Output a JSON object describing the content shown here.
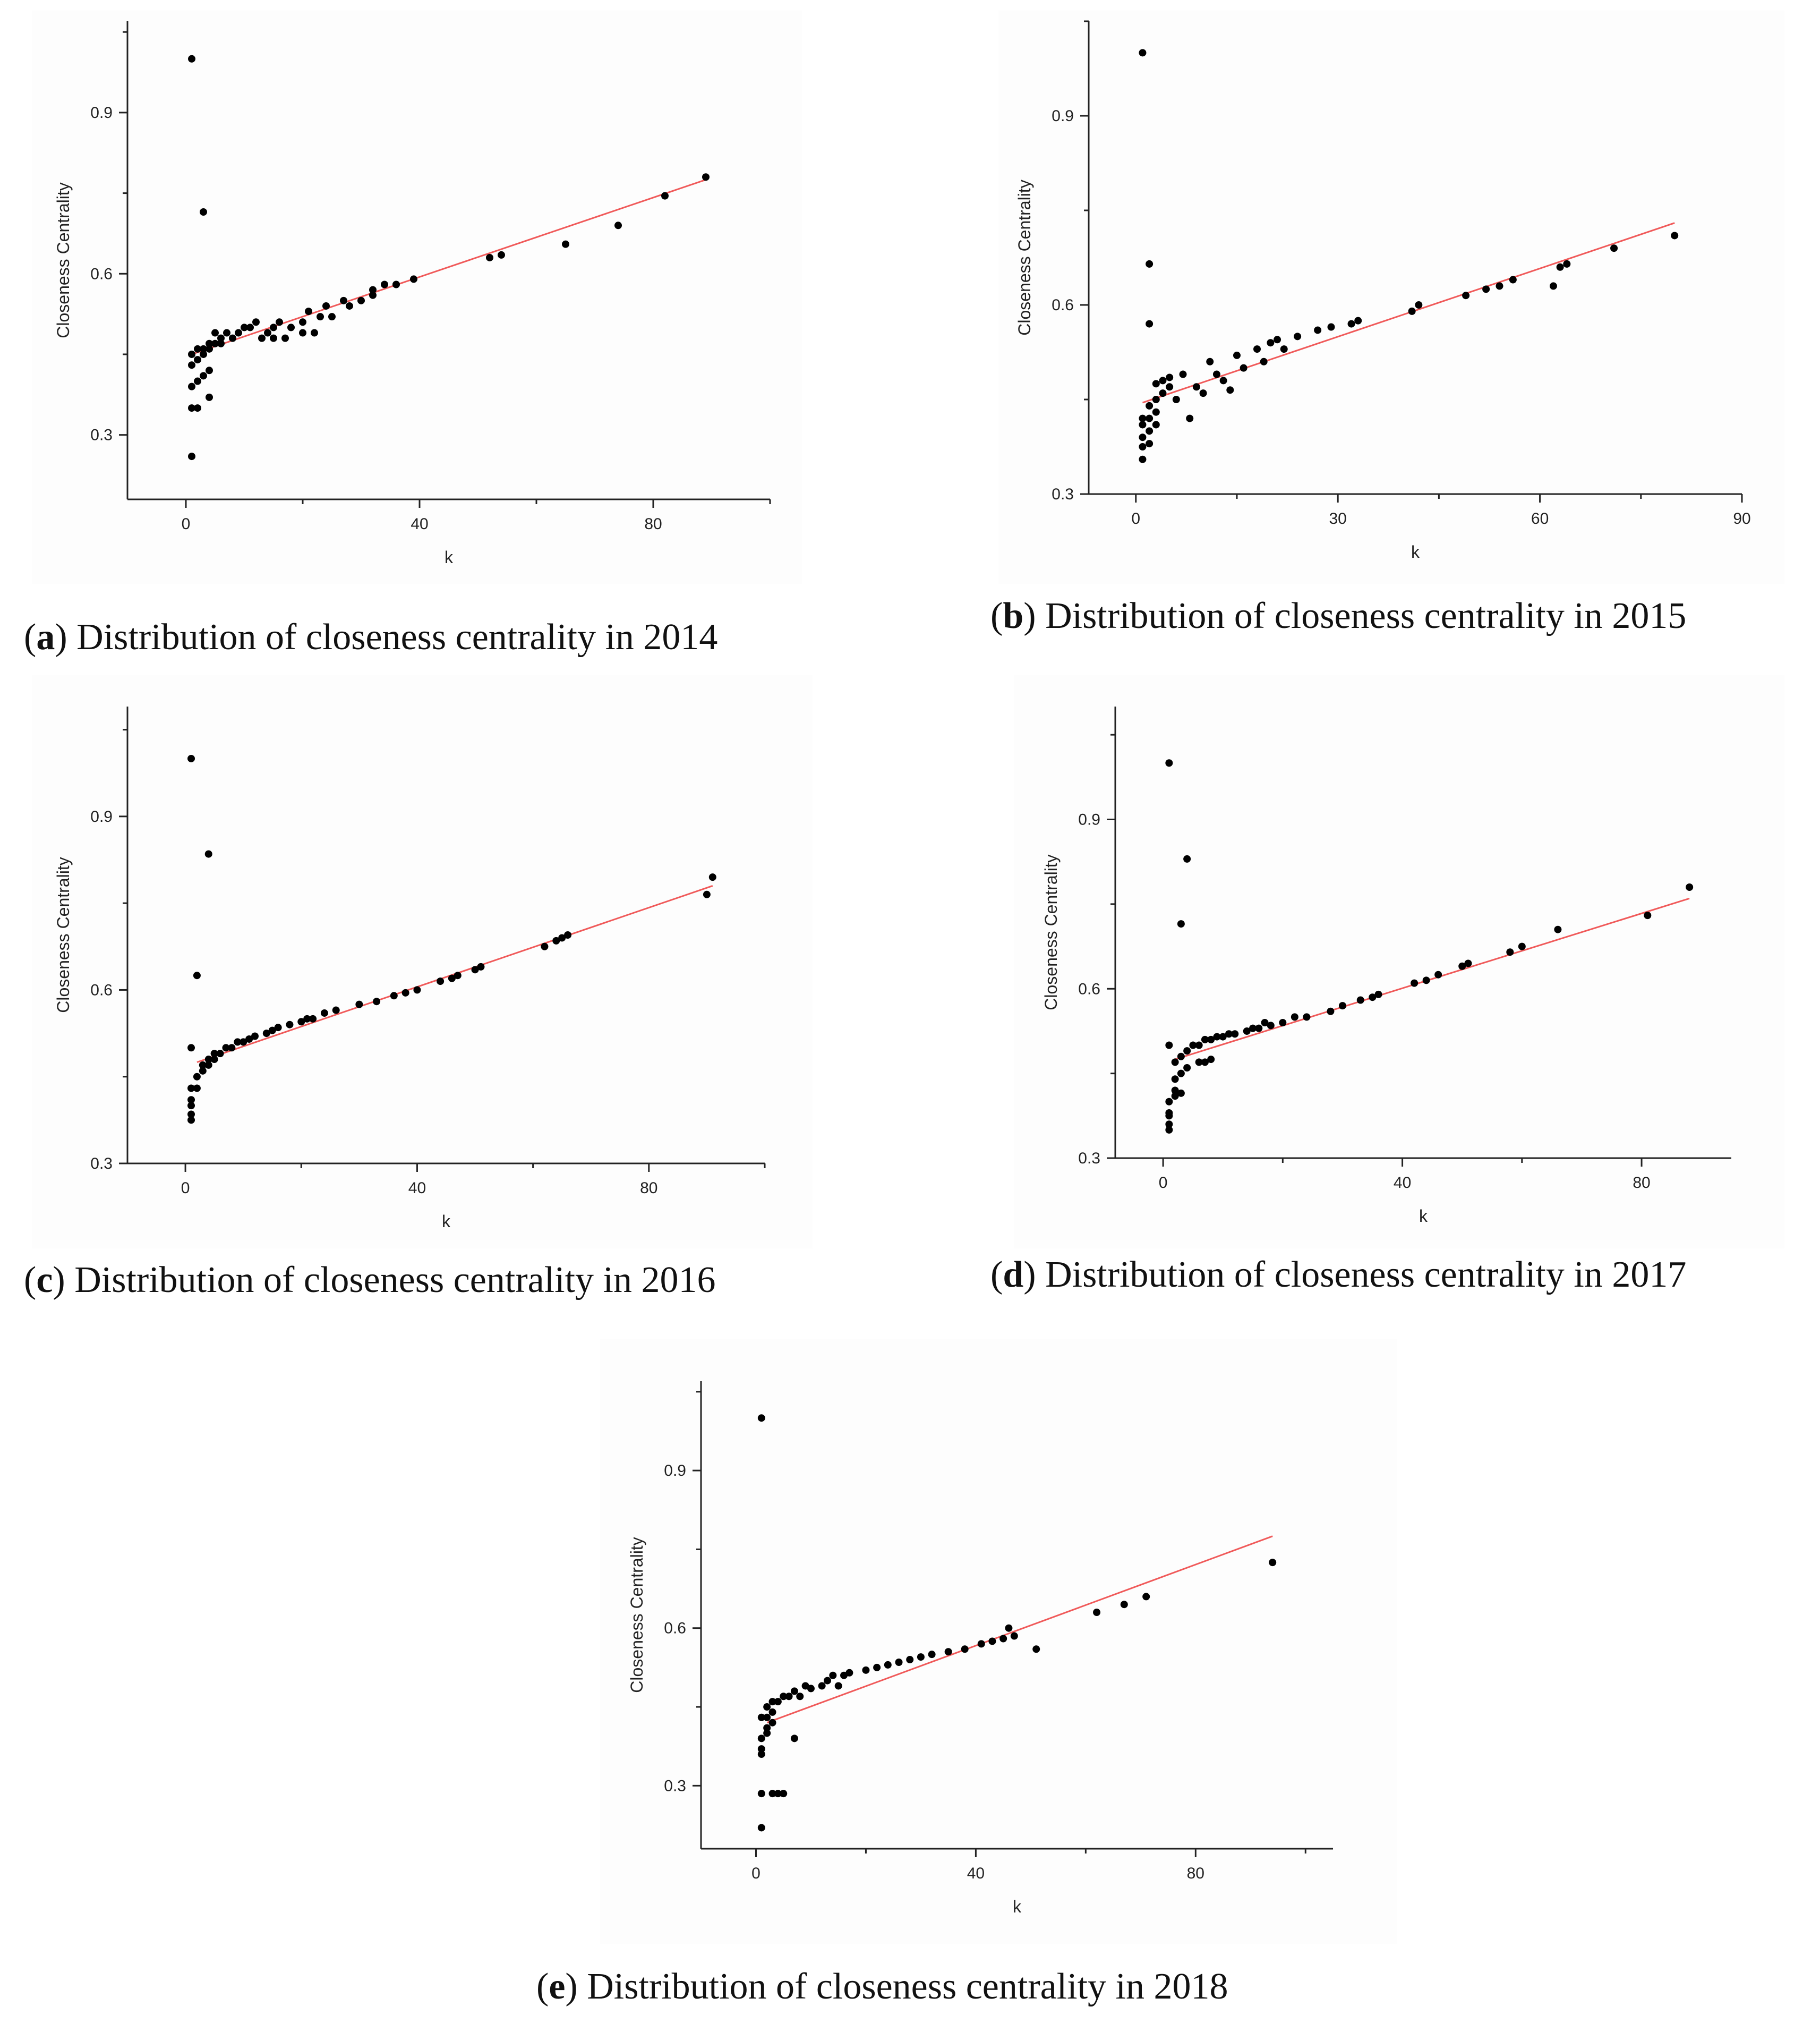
{
  "figure": {
    "panels": [
      {
        "letter": "a",
        "caption_text": " Distribution of closeness centrality in 2014"
      },
      {
        "letter": "b",
        "caption_text": " Distribution of closeness centrality in 2015"
      },
      {
        "letter": "c",
        "caption_text": " Distribution of closeness centrality in 2016"
      },
      {
        "letter": "d",
        "caption_text": " Distribution of closeness centrality in 2017"
      },
      {
        "letter": "e",
        "caption_text": " Distribution of closeness centrality in 2018"
      }
    ]
  },
  "colors": {
    "points": "#000000",
    "fit_line": "#f05a5a",
    "axes": "#222222"
  },
  "chart_data": [
    {
      "type": "scatter",
      "title": "Distribution of closeness centrality in 2014",
      "xlabel": "k",
      "ylabel": "Closeness Centrality",
      "xlim": [
        -10,
        100
      ],
      "ylim": [
        0.18,
        1.07
      ],
      "xticks": [
        0,
        40,
        80
      ],
      "yticks": [
        0.3,
        0.6,
        0.9
      ],
      "xtick_labels": [
        "0",
        "40",
        "80"
      ],
      "ytick_labels": [
        "0.3",
        "0.6",
        "0.9"
      ],
      "fit": {
        "x": [
          1,
          89
        ],
        "y": [
          0.45,
          0.775
        ]
      },
      "points": [
        [
          1,
          1.0
        ],
        [
          3,
          0.715
        ],
        [
          1,
          0.26
        ],
        [
          1,
          0.35
        ],
        [
          2,
          0.35
        ],
        [
          4,
          0.37
        ],
        [
          1,
          0.39
        ],
        [
          2,
          0.4
        ],
        [
          3,
          0.41
        ],
        [
          4,
          0.42
        ],
        [
          1,
          0.43
        ],
        [
          2,
          0.44
        ],
        [
          3,
          0.45
        ],
        [
          1,
          0.45
        ],
        [
          2,
          0.46
        ],
        [
          3,
          0.46
        ],
        [
          4,
          0.47
        ],
        [
          5,
          0.47
        ],
        [
          6,
          0.48
        ],
        [
          4,
          0.46
        ],
        [
          5,
          0.49
        ],
        [
          6,
          0.47
        ],
        [
          7,
          0.49
        ],
        [
          8,
          0.48
        ],
        [
          9,
          0.49
        ],
        [
          10,
          0.5
        ],
        [
          11,
          0.5
        ],
        [
          12,
          0.51
        ],
        [
          13,
          0.48
        ],
        [
          14,
          0.49
        ],
        [
          15,
          0.5
        ],
        [
          15,
          0.48
        ],
        [
          16,
          0.51
        ],
        [
          17,
          0.48
        ],
        [
          18,
          0.5
        ],
        [
          20,
          0.51
        ],
        [
          20,
          0.49
        ],
        [
          21,
          0.53
        ],
        [
          22,
          0.49
        ],
        [
          23,
          0.52
        ],
        [
          24,
          0.54
        ],
        [
          25,
          0.52
        ],
        [
          27,
          0.55
        ],
        [
          28,
          0.54
        ],
        [
          30,
          0.55
        ],
        [
          32,
          0.57
        ],
        [
          32,
          0.56
        ],
        [
          34,
          0.58
        ],
        [
          36,
          0.58
        ],
        [
          39,
          0.59
        ],
        [
          52,
          0.63
        ],
        [
          54,
          0.635
        ],
        [
          65,
          0.655
        ],
        [
          74,
          0.69
        ],
        [
          82,
          0.745
        ],
        [
          89,
          0.78
        ]
      ]
    },
    {
      "type": "scatter",
      "title": "Distribution of closeness centrality in 2015",
      "xlabel": "k",
      "ylabel": "Closeness Centrality",
      "xlim": [
        -7,
        90
      ],
      "ylim": [
        0.3,
        1.05
      ],
      "xticks": [
        0,
        30,
        60,
        90
      ],
      "yticks": [
        0.3,
        0.6,
        0.9
      ],
      "xtick_labels": [
        "0",
        "30",
        "60",
        "90"
      ],
      "ytick_labels": [
        "0.3",
        "0.6",
        "0.9"
      ],
      "fit": {
        "x": [
          1,
          80
        ],
        "y": [
          0.445,
          0.73
        ]
      },
      "points": [
        [
          1,
          1.0
        ],
        [
          2,
          0.665
        ],
        [
          2,
          0.57
        ],
        [
          1,
          0.355
        ],
        [
          1,
          0.375
        ],
        [
          2,
          0.38
        ],
        [
          1,
          0.39
        ],
        [
          2,
          0.4
        ],
        [
          3,
          0.41
        ],
        [
          1,
          0.41
        ],
        [
          2,
          0.42
        ],
        [
          3,
          0.43
        ],
        [
          1,
          0.42
        ],
        [
          2,
          0.44
        ],
        [
          3,
          0.45
        ],
        [
          4,
          0.46
        ],
        [
          5,
          0.47
        ],
        [
          3,
          0.475
        ],
        [
          4,
          0.48
        ],
        [
          5,
          0.485
        ],
        [
          6,
          0.45
        ],
        [
          7,
          0.49
        ],
        [
          8,
          0.42
        ],
        [
          9,
          0.47
        ],
        [
          10,
          0.46
        ],
        [
          11,
          0.51
        ],
        [
          12,
          0.49
        ],
        [
          13,
          0.48
        ],
        [
          14,
          0.465
        ],
        [
          15,
          0.52
        ],
        [
          16,
          0.5
        ],
        [
          18,
          0.53
        ],
        [
          19,
          0.51
        ],
        [
          20,
          0.54
        ],
        [
          21,
          0.545
        ],
        [
          22,
          0.53
        ],
        [
          24,
          0.55
        ],
        [
          27,
          0.56
        ],
        [
          29,
          0.565
        ],
        [
          32,
          0.57
        ],
        [
          33,
          0.575
        ],
        [
          41,
          0.59
        ],
        [
          42,
          0.6
        ],
        [
          49,
          0.615
        ],
        [
          52,
          0.625
        ],
        [
          54,
          0.63
        ],
        [
          56,
          0.64
        ],
        [
          62,
          0.63
        ],
        [
          63,
          0.66
        ],
        [
          64,
          0.665
        ],
        [
          71,
          0.69
        ],
        [
          80,
          0.71
        ]
      ]
    },
    {
      "type": "scatter",
      "title": "Distribution of closeness centrality in 2016",
      "xlabel": "k",
      "ylabel": "Closeness Centrality",
      "xlim": [
        -10,
        100
      ],
      "ylim": [
        0.3,
        1.09
      ],
      "xticks": [
        0,
        40,
        80
      ],
      "yticks": [
        0.3,
        0.6,
        0.9
      ],
      "xtick_labels": [
        "0",
        "40",
        "80"
      ],
      "ytick_labels": [
        "0.3",
        "0.6",
        "0.9"
      ],
      "fit": {
        "x": [
          2,
          91
        ],
        "y": [
          0.475,
          0.78
        ]
      },
      "points": [
        [
          1,
          1.0
        ],
        [
          4,
          0.835
        ],
        [
          2,
          0.625
        ],
        [
          1,
          0.5
        ],
        [
          1,
          0.375
        ],
        [
          1,
          0.385
        ],
        [
          1,
          0.4
        ],
        [
          1,
          0.41
        ],
        [
          1,
          0.43
        ],
        [
          2,
          0.43
        ],
        [
          2,
          0.45
        ],
        [
          3,
          0.46
        ],
        [
          3,
          0.47
        ],
        [
          4,
          0.47
        ],
        [
          4,
          0.48
        ],
        [
          5,
          0.48
        ],
        [
          5,
          0.49
        ],
        [
          6,
          0.49
        ],
        [
          7,
          0.5
        ],
        [
          8,
          0.5
        ],
        [
          9,
          0.51
        ],
        [
          10,
          0.51
        ],
        [
          11,
          0.515
        ],
        [
          12,
          0.52
        ],
        [
          14,
          0.525
        ],
        [
          15,
          0.53
        ],
        [
          16,
          0.535
        ],
        [
          18,
          0.54
        ],
        [
          20,
          0.545
        ],
        [
          21,
          0.55
        ],
        [
          22,
          0.55
        ],
        [
          24,
          0.56
        ],
        [
          26,
          0.565
        ],
        [
          30,
          0.575
        ],
        [
          33,
          0.58
        ],
        [
          36,
          0.59
        ],
        [
          38,
          0.595
        ],
        [
          40,
          0.6
        ],
        [
          44,
          0.615
        ],
        [
          46,
          0.62
        ],
        [
          47,
          0.625
        ],
        [
          50,
          0.635
        ],
        [
          51,
          0.64
        ],
        [
          62,
          0.675
        ],
        [
          64,
          0.685
        ],
        [
          65,
          0.69
        ],
        [
          66,
          0.695
        ],
        [
          90,
          0.765
        ],
        [
          91,
          0.795
        ]
      ]
    },
    {
      "type": "scatter",
      "title": "Distribution of closeness centrality in 2017",
      "xlabel": "k",
      "ylabel": "Closeness Centrality",
      "xlim": [
        -8,
        95
      ],
      "ylim": [
        0.3,
        1.1
      ],
      "xticks": [
        0,
        40,
        80
      ],
      "yticks": [
        0.3,
        0.6,
        0.9
      ],
      "xtick_labels": [
        "0",
        "40",
        "80"
      ],
      "ytick_labels": [
        "0.3",
        "0.6",
        "0.9"
      ],
      "fit": {
        "x": [
          2,
          88
        ],
        "y": [
          0.475,
          0.76
        ]
      },
      "points": [
        [
          1,
          1.0
        ],
        [
          4,
          0.83
        ],
        [
          3,
          0.715
        ],
        [
          1,
          0.5
        ],
        [
          1,
          0.35
        ],
        [
          1,
          0.36
        ],
        [
          1,
          0.375
        ],
        [
          1,
          0.38
        ],
        [
          1,
          0.4
        ],
        [
          2,
          0.41
        ],
        [
          2,
          0.42
        ],
        [
          3,
          0.415
        ],
        [
          2,
          0.44
        ],
        [
          3,
          0.45
        ],
        [
          4,
          0.46
        ],
        [
          2,
          0.47
        ],
        [
          3,
          0.48
        ],
        [
          4,
          0.49
        ],
        [
          5,
          0.5
        ],
        [
          6,
          0.47
        ],
        [
          7,
          0.47
        ],
        [
          8,
          0.475
        ],
        [
          6,
          0.5
        ],
        [
          7,
          0.51
        ],
        [
          8,
          0.51
        ],
        [
          9,
          0.515
        ],
        [
          10,
          0.515
        ],
        [
          11,
          0.52
        ],
        [
          12,
          0.52
        ],
        [
          14,
          0.525
        ],
        [
          15,
          0.53
        ],
        [
          16,
          0.53
        ],
        [
          17,
          0.54
        ],
        [
          18,
          0.535
        ],
        [
          20,
          0.54
        ],
        [
          22,
          0.55
        ],
        [
          24,
          0.55
        ],
        [
          28,
          0.56
        ],
        [
          30,
          0.57
        ],
        [
          33,
          0.58
        ],
        [
          35,
          0.585
        ],
        [
          36,
          0.59
        ],
        [
          42,
          0.61
        ],
        [
          44,
          0.615
        ],
        [
          46,
          0.625
        ],
        [
          50,
          0.64
        ],
        [
          51,
          0.645
        ],
        [
          58,
          0.665
        ],
        [
          60,
          0.675
        ],
        [
          66,
          0.705
        ],
        [
          81,
          0.73
        ],
        [
          88,
          0.78
        ]
      ]
    },
    {
      "type": "scatter",
      "title": "Distribution of closeness centrality in 2018",
      "xlabel": "k",
      "ylabel": "Closeness Centrality",
      "xlim": [
        -10,
        105
      ],
      "ylim": [
        0.18,
        1.07
      ],
      "xticks": [
        0,
        40,
        80
      ],
      "yticks": [
        0.3,
        0.6,
        0.9
      ],
      "xtick_labels": [
        "0",
        "40",
        "80"
      ],
      "ytick_labels": [
        "0.3",
        "0.6",
        "0.9"
      ],
      "fit": {
        "x": [
          2,
          94
        ],
        "y": [
          0.42,
          0.775
        ]
      },
      "points": [
        [
          1,
          1.0
        ],
        [
          1,
          0.22
        ],
        [
          1,
          0.285
        ],
        [
          3,
          0.285
        ],
        [
          4,
          0.285
        ],
        [
          5,
          0.285
        ],
        [
          1,
          0.36
        ],
        [
          1,
          0.37
        ],
        [
          1,
          0.39
        ],
        [
          2,
          0.4
        ],
        [
          2,
          0.41
        ],
        [
          3,
          0.42
        ],
        [
          2,
          0.43
        ],
        [
          3,
          0.44
        ],
        [
          1,
          0.43
        ],
        [
          2,
          0.45
        ],
        [
          3,
          0.46
        ],
        [
          4,
          0.46
        ],
        [
          5,
          0.47
        ],
        [
          6,
          0.47
        ],
        [
          7,
          0.39
        ],
        [
          7,
          0.48
        ],
        [
          8,
          0.47
        ],
        [
          9,
          0.49
        ],
        [
          10,
          0.485
        ],
        [
          12,
          0.49
        ],
        [
          13,
          0.5
        ],
        [
          14,
          0.51
        ],
        [
          15,
          0.49
        ],
        [
          16,
          0.51
        ],
        [
          17,
          0.515
        ],
        [
          20,
          0.52
        ],
        [
          22,
          0.525
        ],
        [
          24,
          0.53
        ],
        [
          26,
          0.535
        ],
        [
          28,
          0.54
        ],
        [
          30,
          0.545
        ],
        [
          32,
          0.55
        ],
        [
          35,
          0.555
        ],
        [
          38,
          0.56
        ],
        [
          41,
          0.57
        ],
        [
          43,
          0.575
        ],
        [
          45,
          0.58
        ],
        [
          46,
          0.6
        ],
        [
          47,
          0.585
        ],
        [
          51,
          0.56
        ],
        [
          62,
          0.63
        ],
        [
          67,
          0.645
        ],
        [
          71,
          0.66
        ],
        [
          94,
          0.725
        ]
      ]
    }
  ]
}
